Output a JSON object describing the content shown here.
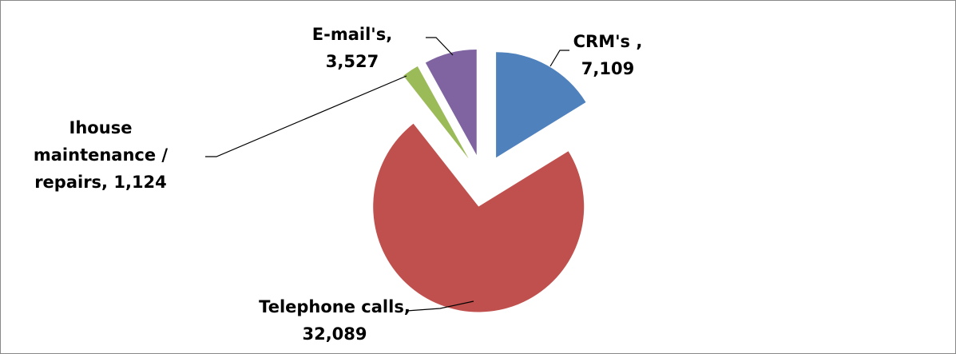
{
  "chart_data": {
    "type": "pie",
    "categories": [
      "CRM's ,",
      "Telephone calls,",
      "Ihouse maintenance / repairs,",
      "E-mail's,"
    ],
    "values": [
      7109,
      32089,
      1124,
      3527
    ],
    "value_labels": [
      "7,109",
      "32,089",
      "1,124",
      "3,527"
    ],
    "colors": [
      "#4f81bd",
      "#c0504d",
      "#9bbb59",
      "#8064a2"
    ]
  }
}
